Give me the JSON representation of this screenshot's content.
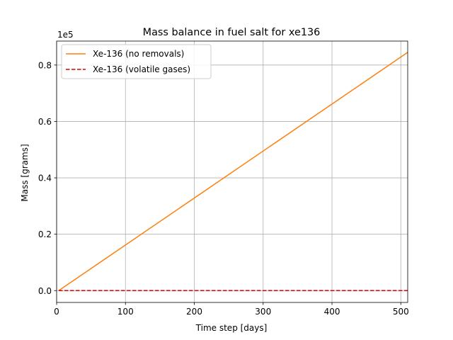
{
  "chart_data": {
    "type": "line",
    "title": "Mass balance in fuel salt for xe136",
    "xlabel": "Time step [days]",
    "ylabel": "Mass [grams]",
    "y_offset_label": "1e5",
    "xlim": [
      0,
      510
    ],
    "ylim": [
      -0.042,
      0.885
    ],
    "x_ticks": [
      0,
      100,
      200,
      300,
      400,
      500
    ],
    "x_tick_labels": [
      "0",
      "100",
      "200",
      "300",
      "400",
      "500"
    ],
    "y_ticks": [
      0.0,
      0.2,
      0.4,
      0.6,
      0.8
    ],
    "y_tick_labels": [
      "0.0",
      "0.2",
      "0.4",
      "0.6",
      "0.8"
    ],
    "grid": true,
    "legend_position": "upper-left",
    "series": [
      {
        "name": "Xe-136 (no removals)",
        "color": "#ff7f0e",
        "line_style": "solid",
        "x": [
          3,
          510
        ],
        "y": [
          0.0,
          0.845
        ]
      },
      {
        "name": "Xe-136 (volatile gases)",
        "color": "#e00000",
        "line_style": "dashed",
        "x": [
          3,
          510
        ],
        "y": [
          0.0,
          0.0
        ]
      }
    ]
  }
}
